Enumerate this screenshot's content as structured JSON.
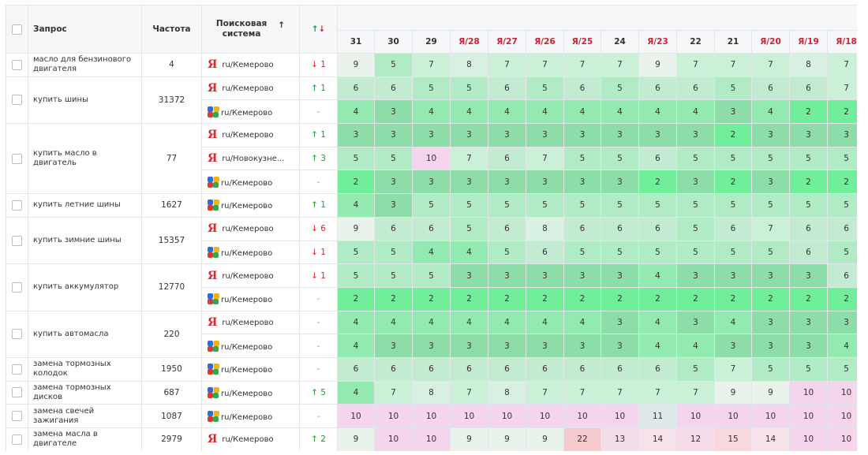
{
  "header": {
    "query": "Запрос",
    "frequency": "Частота",
    "engine_line1": "Поисковая",
    "engine_line2": "система",
    "sort_icon": "↑",
    "delta_up": "↑",
    "delta_down": "↓"
  },
  "dates": [
    "31",
    "30",
    "29",
    "Я/28",
    "Я/27",
    "Я/26",
    "Я/25",
    "24",
    "Я/23",
    "22",
    "21",
    "Я/20",
    "Я/19",
    "Я/18"
  ],
  "rows": [
    {
      "query": "масло для бензинового двигателя",
      "freq": "4",
      "engines": [
        {
          "type": "yandex",
          "ya_glyph": "Я",
          "region": "ru/Кемерово",
          "dir": "down",
          "delta": "↓ 1",
          "pos": [
            "9",
            "5",
            "7",
            "8",
            "7",
            "7",
            "7",
            "7",
            "9",
            "7",
            "7",
            "7",
            "8",
            "7"
          ]
        }
      ]
    },
    {
      "query": "купить шины",
      "freq": "31372",
      "engines": [
        {
          "type": "yandex",
          "ya_glyph": "Я",
          "region": "ru/Кемерово",
          "dir": "up",
          "delta": "↑ 1",
          "pos": [
            "6",
            "6",
            "5",
            "5",
            "6",
            "5",
            "6",
            "5",
            "6",
            "6",
            "5",
            "6",
            "6",
            "7"
          ]
        },
        {
          "type": "google",
          "region": "ru/Кемерово",
          "dir": "flat",
          "delta": "-",
          "pos": [
            "4",
            "3",
            "4",
            "4",
            "4",
            "4",
            "4",
            "4",
            "4",
            "4",
            "3",
            "4",
            "2",
            "2"
          ]
        }
      ]
    },
    {
      "query": "купить масло в двигатель",
      "freq": "77",
      "engines": [
        {
          "type": "yandex",
          "ya_glyph": "Я",
          "region": "ru/Кемерово",
          "dir": "up",
          "delta": "↑ 1",
          "pos": [
            "3",
            "3",
            "3",
            "3",
            "3",
            "3",
            "3",
            "3",
            "3",
            "3",
            "2",
            "3",
            "3",
            "3"
          ]
        },
        {
          "type": "yandex",
          "ya_glyph": "Я",
          "region": "ru/Новокузне...",
          "dir": "up",
          "delta": "↑ 3",
          "pos": [
            "5",
            "5",
            "10",
            "7",
            "6",
            "7",
            "5",
            "5",
            "6",
            "5",
            "5",
            "5",
            "5",
            "5"
          ]
        },
        {
          "type": "google",
          "region": "ru/Кемерово",
          "dir": "flat",
          "delta": "-",
          "pos": [
            "2",
            "3",
            "3",
            "3",
            "3",
            "3",
            "3",
            "3",
            "2",
            "3",
            "2",
            "3",
            "2",
            "2"
          ]
        }
      ]
    },
    {
      "query": "купить летние шины",
      "freq": "1627",
      "engines": [
        {
          "type": "google",
          "region": "ru/Кемерово",
          "dir": "up",
          "delta": "↑ 1",
          "pos": [
            "4",
            "3",
            "5",
            "5",
            "5",
            "5",
            "5",
            "5",
            "5",
            "5",
            "5",
            "5",
            "5",
            "5"
          ]
        }
      ]
    },
    {
      "query": "купить зимние шины",
      "freq": "15357",
      "engines": [
        {
          "type": "yandex",
          "ya_glyph": "Я",
          "region": "ru/Кемерово",
          "dir": "down",
          "delta": "↓ 6",
          "pos": [
            "9",
            "6",
            "6",
            "5",
            "6",
            "8",
            "6",
            "6",
            "6",
            "5",
            "6",
            "7",
            "6",
            "6"
          ]
        },
        {
          "type": "google",
          "region": "ru/Кемерово",
          "dir": "down",
          "delta": "↓ 1",
          "pos": [
            "5",
            "5",
            "4",
            "4",
            "5",
            "6",
            "5",
            "5",
            "5",
            "5",
            "5",
            "5",
            "6",
            "5"
          ]
        }
      ]
    },
    {
      "query": "купить аккумулятор",
      "freq": "12770",
      "engines": [
        {
          "type": "yandex",
          "ya_glyph": "Я",
          "region": "ru/Кемерово",
          "dir": "down",
          "delta": "↓ 1",
          "pos": [
            "5",
            "5",
            "5",
            "3",
            "3",
            "3",
            "3",
            "3",
            "4",
            "3",
            "3",
            "3",
            "3",
            "6"
          ]
        },
        {
          "type": "google",
          "region": "ru/Кемерово",
          "dir": "flat",
          "delta": "-",
          "pos": [
            "2",
            "2",
            "2",
            "2",
            "2",
            "2",
            "2",
            "2",
            "2",
            "2",
            "2",
            "2",
            "2",
            "2"
          ]
        }
      ]
    },
    {
      "query": "купить автомасла",
      "freq": "220",
      "engines": [
        {
          "type": "yandex",
          "ya_glyph": "Я",
          "region": "ru/Кемерово",
          "dir": "flat",
          "delta": "-",
          "pos": [
            "4",
            "4",
            "4",
            "4",
            "4",
            "4",
            "4",
            "3",
            "4",
            "3",
            "4",
            "3",
            "3",
            "3"
          ]
        },
        {
          "type": "google",
          "region": "ru/Кемерово",
          "dir": "flat",
          "delta": "-",
          "pos": [
            "4",
            "3",
            "3",
            "3",
            "3",
            "3",
            "3",
            "3",
            "4",
            "4",
            "3",
            "3",
            "3",
            "4"
          ]
        }
      ]
    },
    {
      "query": "замена тормозных колодок",
      "freq": "1950",
      "engines": [
        {
          "type": "google",
          "region": "ru/Кемерово",
          "dir": "flat",
          "delta": "-",
          "pos": [
            "6",
            "6",
            "6",
            "6",
            "6",
            "6",
            "6",
            "6",
            "6",
            "5",
            "7",
            "5",
            "5",
            "5"
          ]
        }
      ]
    },
    {
      "query": "замена тормозных дисков",
      "freq": "687",
      "engines": [
        {
          "type": "google",
          "region": "ru/Кемерово",
          "dir": "up",
          "delta": "↑ 5",
          "pos": [
            "4",
            "7",
            "8",
            "7",
            "8",
            "7",
            "7",
            "7",
            "7",
            "7",
            "9",
            "9",
            "10",
            "10"
          ]
        }
      ]
    },
    {
      "query": "замена свечей зажигания",
      "freq": "1087",
      "engines": [
        {
          "type": "google",
          "region": "ru/Кемерово",
          "dir": "flat",
          "delta": "-",
          "pos": [
            "10",
            "10",
            "10",
            "10",
            "10",
            "10",
            "10",
            "10",
            "11",
            "10",
            "10",
            "10",
            "10",
            "10"
          ]
        }
      ]
    },
    {
      "query": "замена масла в двигателе",
      "freq": "2979",
      "engines": [
        {
          "type": "yandex",
          "ya_glyph": "Я",
          "region": "ru/Кемерово",
          "dir": "up",
          "delta": "↑ 2",
          "pos": [
            "9",
            "10",
            "10",
            "9",
            "9",
            "9",
            "22",
            "13",
            "14",
            "12",
            "15",
            "14",
            "10",
            "10"
          ]
        }
      ]
    }
  ]
}
